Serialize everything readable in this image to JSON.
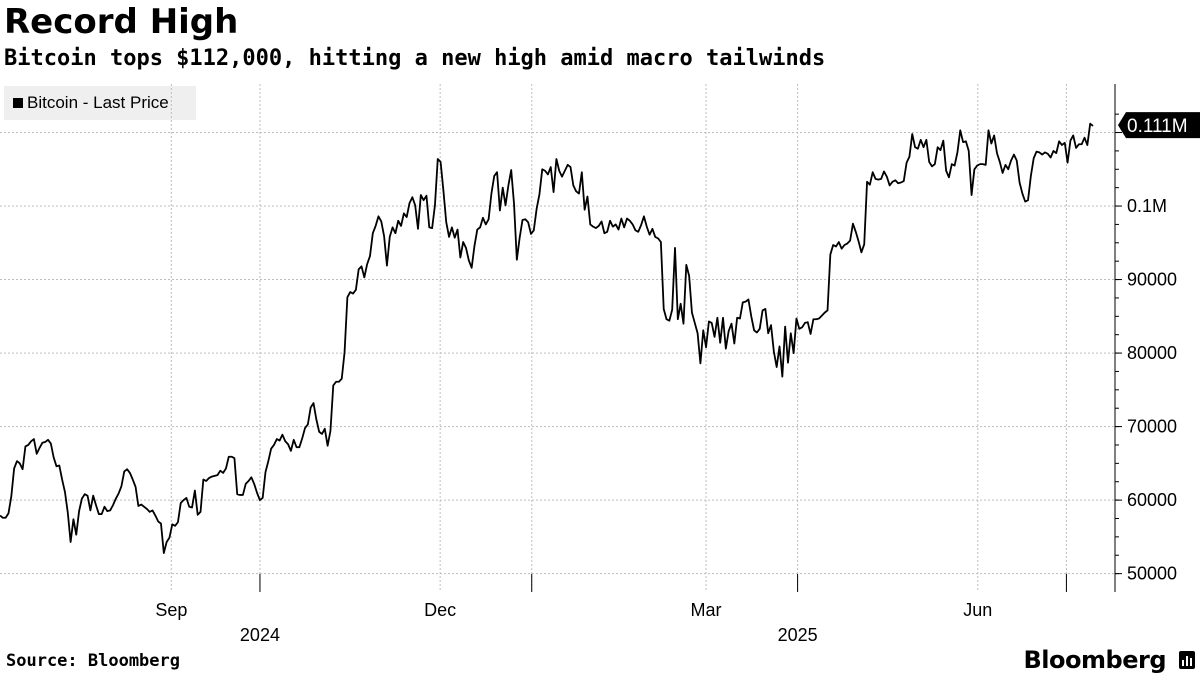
{
  "chart_data": {
    "type": "line",
    "title": "Record High",
    "subtitle": "Bitcoin tops $112,000, hitting a new high amid macro tailwinds",
    "legend": [
      "Bitcoin - Last Price"
    ],
    "legend_position": "top-left",
    "series": [
      {
        "name": "Bitcoin - Last Price",
        "color": "#000000",
        "values": [
          57900,
          57600,
          57600,
          58200,
          60500,
          64300,
          65300,
          65000,
          64200,
          67300,
          67500,
          68000,
          68300,
          66300,
          67100,
          67800,
          67900,
          68200,
          67700,
          65800,
          64600,
          64700,
          62800,
          61100,
          58300,
          54300,
          57400,
          55300,
          58500,
          60200,
          60800,
          60600,
          58600,
          60600,
          59300,
          58100,
          58100,
          59100,
          58500,
          58600,
          59300,
          60200,
          60900,
          61900,
          63900,
          64200,
          63700,
          62800,
          61800,
          59200,
          59400,
          59100,
          58800,
          58400,
          58600,
          57900,
          57100,
          56800,
          52800,
          54300,
          54900,
          56700,
          56500,
          57000,
          59600,
          60000,
          60300,
          59100,
          59000,
          61300,
          58000,
          58400,
          62800,
          62600,
          63000,
          63200,
          63300,
          63400,
          64000,
          63700,
          64300,
          65900,
          65900,
          65700,
          60800,
          60700,
          60700,
          62200,
          62600,
          63100,
          62200,
          61000,
          60000,
          60300,
          63800,
          65300,
          67000,
          67500,
          68300,
          68100,
          68900,
          68000,
          67600,
          66700,
          68200,
          67200,
          67200,
          68400,
          69800,
          70300,
          72600,
          73200,
          71000,
          69300,
          69000,
          69700,
          67400,
          69400,
          75600,
          76100,
          76100,
          76500,
          80100,
          87600,
          88300,
          88100,
          88600,
          91400,
          91800,
          90300,
          92100,
          93200,
          96300,
          97300,
          98600,
          97900,
          95900,
          91900,
          95800,
          97100,
          96300,
          98000,
          97300,
          99000,
          98500,
          100400,
          101200,
          100100,
          96900,
          101500,
          100800,
          101400,
          97100,
          97000,
          100100,
          106400,
          106000,
          102100,
          97800,
          95800,
          97100,
          95700,
          96800,
          93000,
          95100,
          94300,
          92600,
          91600,
          94600,
          96800,
          97100,
          98400,
          97500,
          98200,
          101700,
          104100,
          104600,
          99400,
          102500,
          100100,
          102800,
          104900,
          100300,
          92700,
          95700,
          98100,
          98200,
          97800,
          96200,
          96700,
          99600,
          101600,
          105000,
          104800,
          104300,
          105300,
          101900,
          106400,
          104800,
          104000,
          104800,
          105600,
          105300,
          102800,
          102000,
          101700,
          104600,
          99500,
          101300,
          97500,
          97200,
          97000,
          97300,
          97900,
          96300,
          96500,
          98000,
          97200,
          97500,
          96800,
          98300,
          97100,
          98300,
          98000,
          97500,
          96700,
          96500,
          97400,
          98600,
          97200,
          96100,
          96900,
          95800,
          95600,
          95100,
          86000,
          84600,
          84400,
          85900,
          94300,
          84600,
          86700,
          84000,
          92000,
          90500,
          85500,
          84100,
          82700,
          78600,
          83100,
          80800,
          84300,
          84100,
          82200,
          84800,
          81400,
          84800,
          80600,
          83000,
          84000,
          81300,
          84800,
          84700,
          86900,
          87000,
          87300,
          85000,
          83100,
          82800,
          83300,
          85800,
          86000,
          82700,
          83800,
          80200,
          78100,
          80900,
          76800,
          83600,
          78700,
          82700,
          80000,
          84700,
          83300,
          83500,
          84100,
          84200,
          82600,
          84600,
          84600,
          84700,
          85100,
          85500,
          85800,
          93400,
          94700,
          94500,
          95100,
          94200,
          94700,
          94900,
          95300,
          97600,
          96500,
          95200,
          93700,
          94800,
          103300,
          102900,
          104600,
          103700,
          103600,
          103700,
          104700,
          104000,
          102800,
          103300,
          103500,
          103100,
          103200,
          103400,
          105900,
          106700,
          109800,
          108000,
          107800,
          109000,
          108000,
          109000,
          106000,
          105400,
          105700,
          108000,
          107600,
          108900,
          104800,
          103900,
          105700,
          105500,
          107300,
          110300,
          108700,
          108800,
          107500,
          101500,
          105000,
          105500,
          105700,
          105700,
          105600,
          110300,
          108500,
          109600,
          107200,
          106000,
          104500,
          105600,
          105000,
          106200,
          107000,
          106200,
          103200,
          101700,
          100600,
          100800,
          104100,
          106500,
          107400,
          107300,
          107000,
          107300,
          107100,
          106600,
          107500,
          107200,
          108800,
          108300,
          108600,
          105900,
          108900,
          109600,
          107900,
          108400,
          108400,
          109300,
          108300,
          111200,
          110900
        ]
      }
    ],
    "x_range": [
      "2024-07-05",
      "2025-07-10"
    ],
    "x_ticks": [
      {
        "label": "Sep",
        "date": "2024-09-01"
      },
      {
        "label": "Dec",
        "date": "2024-12-01"
      },
      {
        "label": "Mar",
        "date": "2025-03-01"
      },
      {
        "label": "Jun",
        "date": "2025-06-01"
      }
    ],
    "year_labels": [
      {
        "label": "2024",
        "date": "2024-10-01"
      },
      {
        "label": "2025",
        "date": "2025-04-01"
      }
    ],
    "y_ticks": [
      {
        "value": 50000,
        "label": "50000"
      },
      {
        "value": 60000,
        "label": "60000"
      },
      {
        "value": 70000,
        "label": "70000"
      },
      {
        "value": 80000,
        "label": "80000"
      },
      {
        "value": 90000,
        "label": "90000"
      },
      {
        "value": 100000,
        "label": "0.1M"
      }
    ],
    "ylim": [
      47500,
      116600
    ],
    "y_axis_position": "right",
    "grid": true,
    "last_value": 111000,
    "last_value_label": "0.111M"
  },
  "footer": {
    "source": "Source: Bloomberg",
    "brand": "Bloomberg"
  }
}
